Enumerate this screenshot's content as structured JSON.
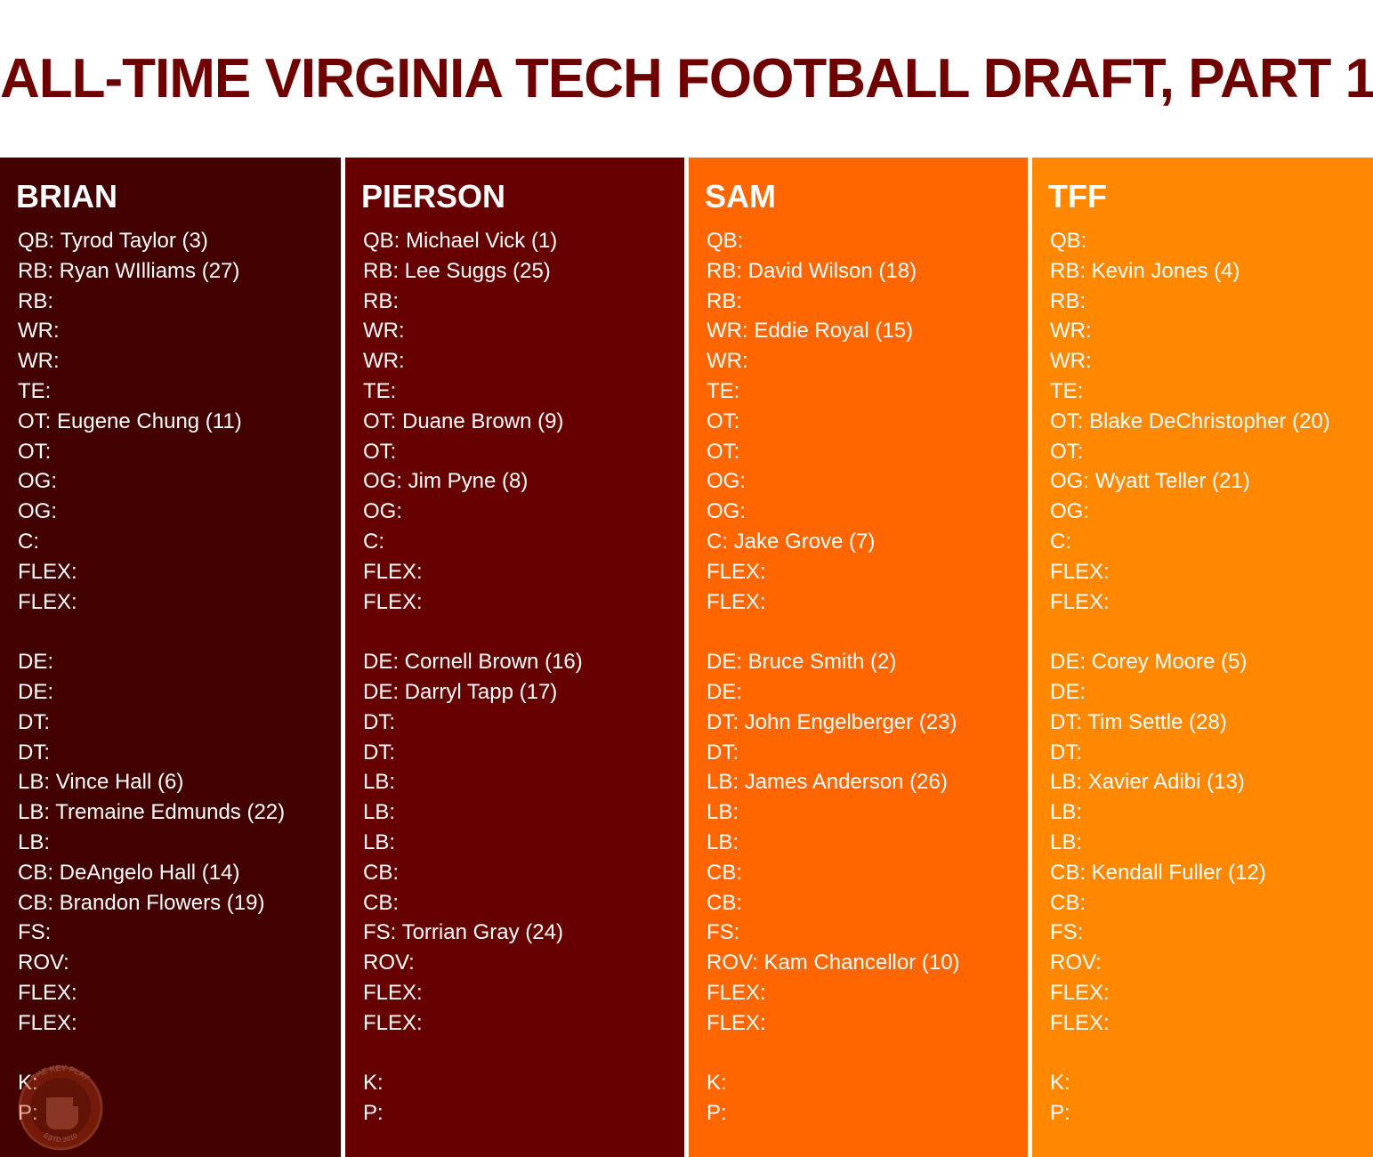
{
  "title": "ALL-TIME VIRGINIA TECH FOOTBALL DRAFT, PART 1",
  "colors": {
    "title": "#6e0000",
    "column_backgrounds": [
      "#420000",
      "#660000",
      "#ff6600",
      "#ff8800"
    ],
    "text": "#ffffff"
  },
  "logo": {
    "text_top": "THE KEY PLAY",
    "text_bottom": "ESTD 2010",
    "icon": "fist-icon"
  },
  "columns": [
    {
      "name": "BRIAN",
      "rows": [
        "QB: Tyrod Taylor (3)",
        "RB: Ryan WIlliams (27)",
        "RB:",
        "WR:",
        "WR:",
        "TE:",
        "OT: Eugene Chung (11)",
        "OT:",
        "OG:",
        "OG:",
        "C:",
        "FLEX:",
        "FLEX:",
        "",
        "DE:",
        "DE:",
        "DT:",
        "DT:",
        "LB: Vince Hall (6)",
        "LB: Tremaine Edmunds (22)",
        "LB:",
        "CB: DeAngelo Hall (14)",
        "CB: Brandon Flowers (19)",
        "FS:",
        "ROV:",
        "FLEX:",
        "FLEX:",
        "",
        "K:",
        "P:"
      ]
    },
    {
      "name": "PIERSON",
      "rows": [
        "QB: Michael Vick (1)",
        "RB: Lee Suggs (25)",
        "RB:",
        "WR:",
        "WR:",
        "TE:",
        "OT: Duane Brown (9)",
        "OT:",
        "OG: Jim Pyne (8)",
        "OG:",
        "C:",
        "FLEX:",
        "FLEX:",
        "",
        "DE: Cornell Brown (16)",
        "DE: Darryl Tapp (17)",
        "DT:",
        "DT:",
        "LB:",
        "LB:",
        "LB:",
        "CB:",
        "CB:",
        "FS: Torrian Gray (24)",
        "ROV:",
        "FLEX:",
        "FLEX:",
        "",
        "K:",
        "P:"
      ]
    },
    {
      "name": "SAM",
      "rows": [
        "QB:",
        "RB: David Wilson (18)",
        "RB:",
        "WR: Eddie Royal (15)",
        "WR:",
        "TE:",
        "OT:",
        "OT:",
        "OG:",
        "OG:",
        "C: Jake Grove (7)",
        "FLEX:",
        "FLEX:",
        "",
        "DE: Bruce Smith (2)",
        "DE:",
        "DT: John Engelberger (23)",
        "DT:",
        "LB: James Anderson (26)",
        "LB:",
        "LB:",
        "CB:",
        "CB:",
        "FS:",
        "ROV: Kam Chancellor (10)",
        "FLEX:",
        "FLEX:",
        "",
        "K:",
        "P:"
      ]
    },
    {
      "name": "TFF",
      "rows": [
        "QB:",
        "RB: Kevin Jones (4)",
        "RB:",
        "WR:",
        "WR:",
        "TE:",
        "OT: Blake DeChristopher (20)",
        "OT:",
        "OG: Wyatt Teller (21)",
        "OG:",
        "C:",
        "FLEX:",
        "FLEX:",
        "",
        "DE: Corey Moore (5)",
        "DE:",
        "DT: Tim Settle (28)",
        "DT:",
        "LB: Xavier Adibi (13)",
        "LB:",
        "LB:",
        "CB: Kendall Fuller (12)",
        "CB:",
        "FS:",
        "ROV:",
        "FLEX:",
        "FLEX:",
        "",
        "K:",
        "P:"
      ]
    }
  ]
}
